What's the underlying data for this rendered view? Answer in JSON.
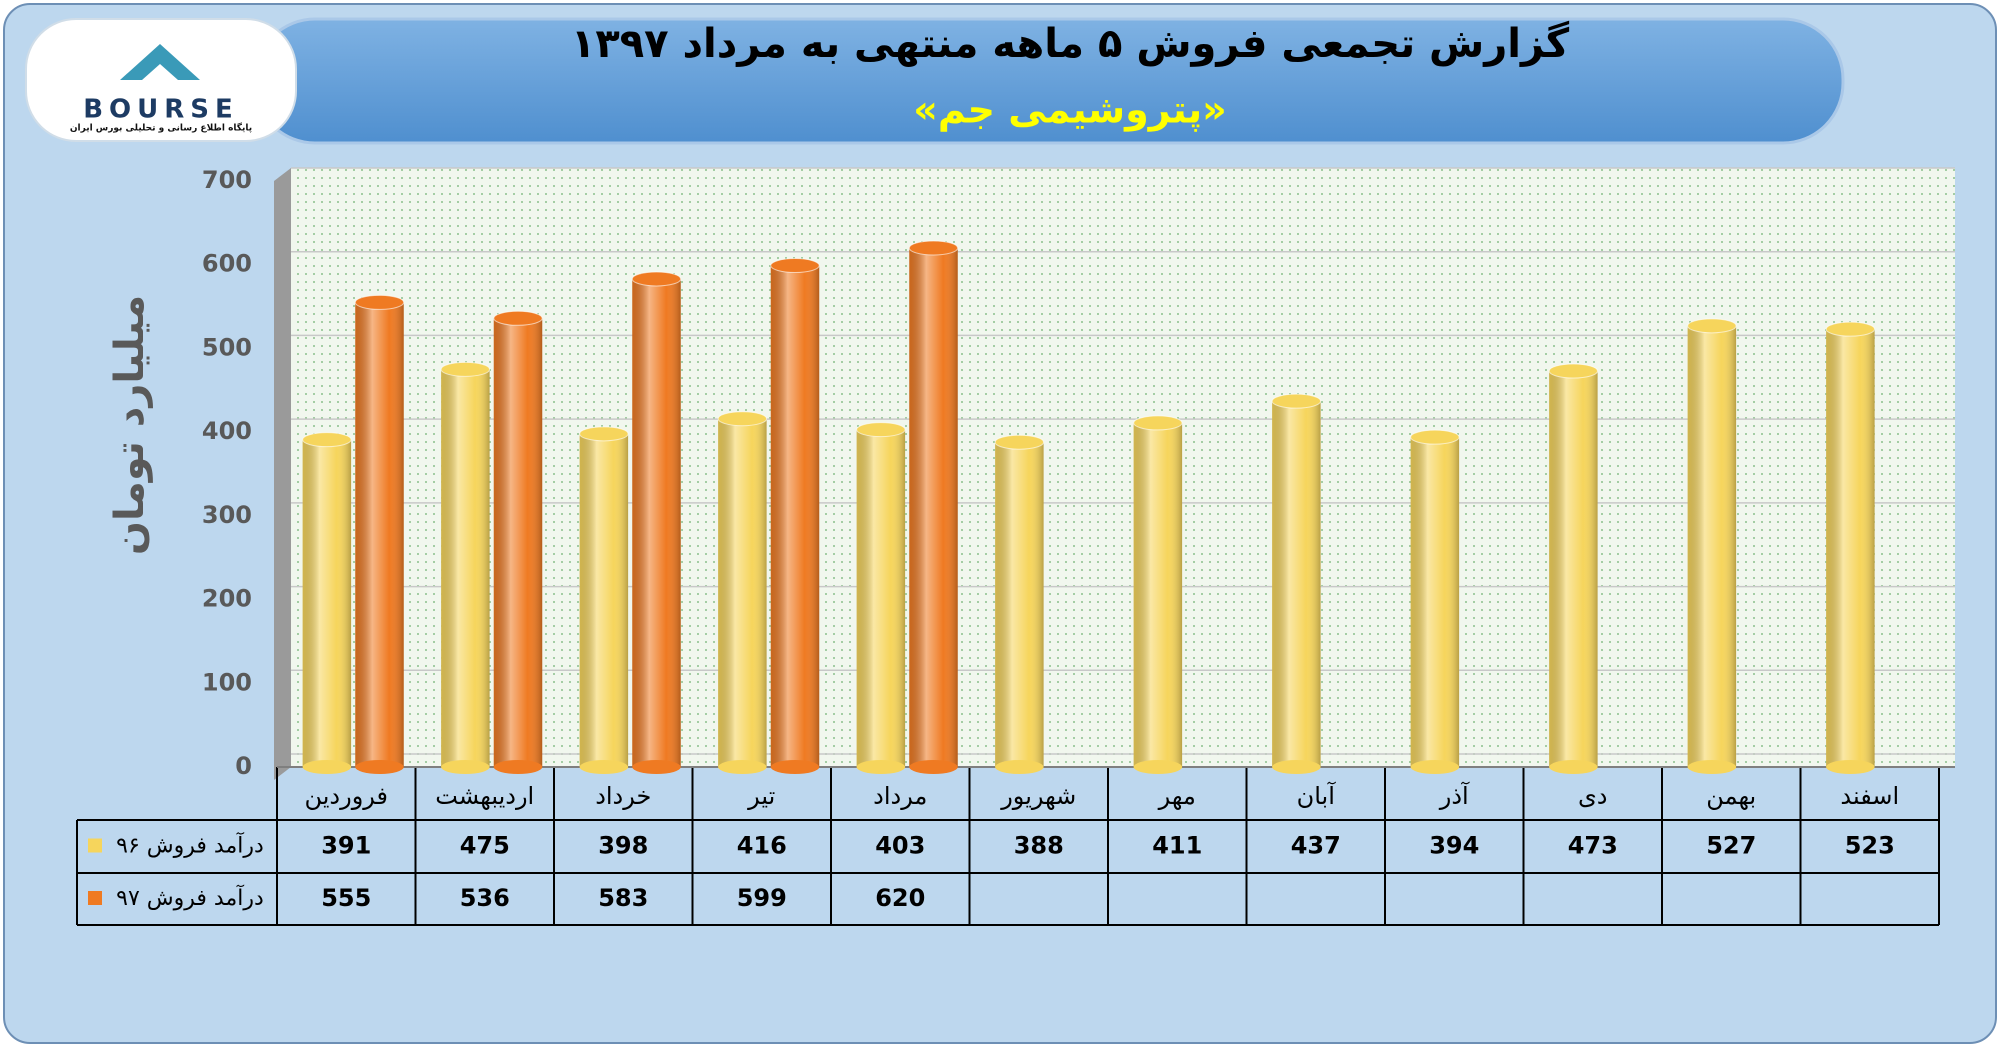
{
  "logo": {
    "name": "BOURSE",
    "tagline": "پایگاه اطلاع رسانی و تحلیلی بورس ایران"
  },
  "chart_data": {
    "type": "bar",
    "title": "گزارش تجمعی فروش ۵ ماهه منتهی به مرداد ۱۳۹۷",
    "subtitle": "«پتروشیمی جم»",
    "y_label": "میلیارد تومان",
    "categories": [
      "فروردین",
      "اردیبهشت",
      "خرداد",
      "تیر",
      "مرداد",
      "شهریور",
      "مهر",
      "آبان",
      "آذر",
      "دی",
      "بهمن",
      "اسفند"
    ],
    "series": [
      {
        "name": "درآمد فروش ۹۶",
        "color": "#f6d55c",
        "values": [
          391,
          475,
          398,
          416,
          403,
          388,
          411,
          437,
          394,
          473,
          527,
          523
        ]
      },
      {
        "name": "درآمد فروش ۹۷",
        "color": "#ef7a22",
        "values": [
          555,
          536,
          583,
          599,
          620,
          null,
          null,
          null,
          null,
          null,
          null,
          null
        ]
      }
    ],
    "ylim": [
      0,
      700
    ],
    "yticks": [
      0,
      100,
      200,
      300,
      400,
      500,
      600,
      700
    ],
    "grid": true
  }
}
